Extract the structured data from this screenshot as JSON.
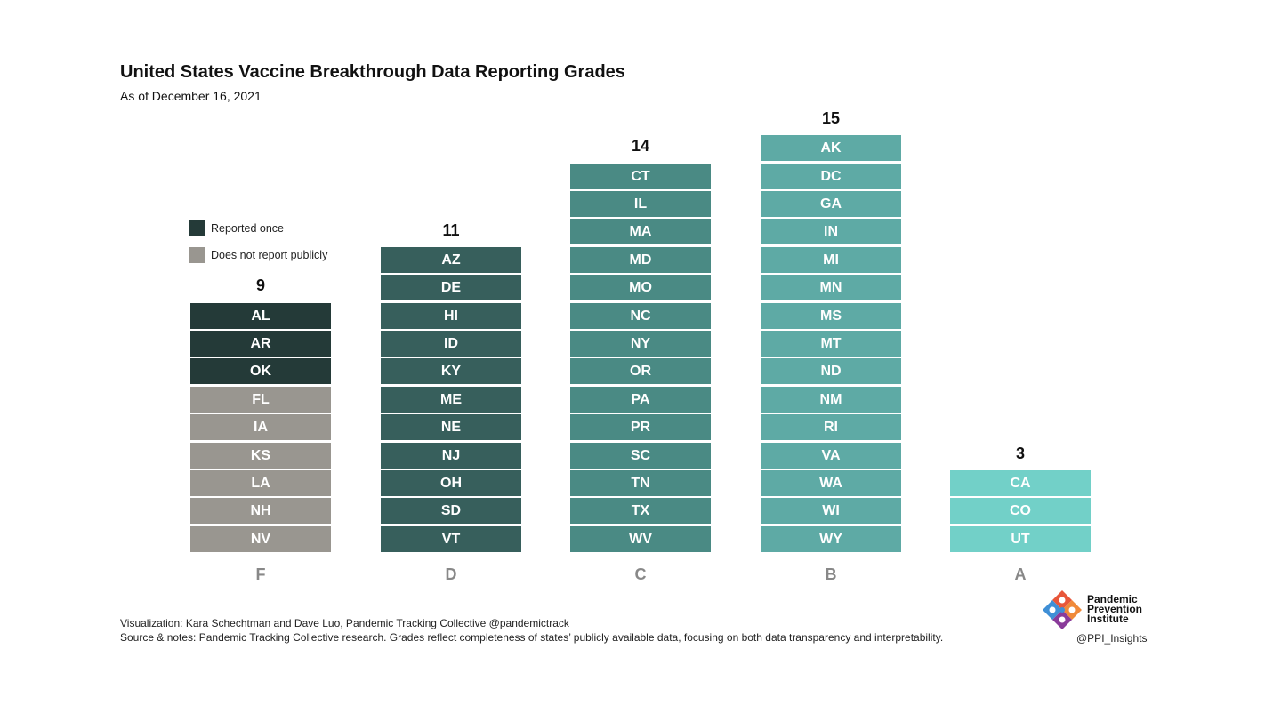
{
  "header": {
    "title": "United States Vaccine Breakthrough Data Reporting Grades",
    "subtitle": "As of December 16, 2021"
  },
  "legend": [
    {
      "label": "Reported once",
      "color": "#243a38"
    },
    {
      "label": "Does not report publicly",
      "color": "#999690"
    }
  ],
  "chart_data": {
    "type": "bar",
    "title": "United States Vaccine Breakthrough Data Reporting Grades",
    "subtitle": "As of December 16, 2021",
    "categories": [
      "F",
      "D",
      "C",
      "B",
      "A"
    ],
    "values": [
      9,
      11,
      14,
      15,
      3
    ],
    "columns": [
      {
        "grade": "F",
        "count": 9,
        "color": "#999690",
        "states": [
          {
            "code": "AL",
            "status": "Reported once"
          },
          {
            "code": "AR",
            "status": "Reported once"
          },
          {
            "code": "OK",
            "status": "Reported once"
          },
          {
            "code": "FL",
            "status": "Does not report publicly"
          },
          {
            "code": "IA",
            "status": "Does not report publicly"
          },
          {
            "code": "KS",
            "status": "Does not report publicly"
          },
          {
            "code": "LA",
            "status": "Does not report publicly"
          },
          {
            "code": "NH",
            "status": "Does not report publicly"
          },
          {
            "code": "NV",
            "status": "Does not report publicly"
          }
        ]
      },
      {
        "grade": "D",
        "count": 11,
        "color": "#375f5c",
        "states": [
          {
            "code": "AZ"
          },
          {
            "code": "DE"
          },
          {
            "code": "HI"
          },
          {
            "code": "ID"
          },
          {
            "code": "KY"
          },
          {
            "code": "ME"
          },
          {
            "code": "NE"
          },
          {
            "code": "NJ"
          },
          {
            "code": "OH"
          },
          {
            "code": "SD"
          },
          {
            "code": "VT"
          }
        ]
      },
      {
        "grade": "C",
        "count": 14,
        "color": "#4a8a84",
        "states": [
          {
            "code": "CT"
          },
          {
            "code": "IL"
          },
          {
            "code": "MA"
          },
          {
            "code": "MD"
          },
          {
            "code": "MO"
          },
          {
            "code": "NC"
          },
          {
            "code": "NY"
          },
          {
            "code": "OR"
          },
          {
            "code": "PA"
          },
          {
            "code": "PR"
          },
          {
            "code": "SC"
          },
          {
            "code": "TN"
          },
          {
            "code": "TX"
          },
          {
            "code": "WV"
          }
        ]
      },
      {
        "grade": "B",
        "count": 15,
        "color": "#5eaaa5",
        "states": [
          {
            "code": "AK"
          },
          {
            "code": "DC"
          },
          {
            "code": "GA"
          },
          {
            "code": "IN"
          },
          {
            "code": "MI"
          },
          {
            "code": "MN"
          },
          {
            "code": "MS"
          },
          {
            "code": "MT"
          },
          {
            "code": "ND"
          },
          {
            "code": "NM"
          },
          {
            "code": "RI"
          },
          {
            "code": "VA"
          },
          {
            "code": "WA"
          },
          {
            "code": "WI"
          },
          {
            "code": "WY"
          }
        ]
      },
      {
        "grade": "A",
        "count": 3,
        "color": "#72d0c8",
        "states": [
          {
            "code": "CA"
          },
          {
            "code": "CO"
          },
          {
            "code": "UT"
          }
        ]
      }
    ],
    "legend_placement": "left, above F column",
    "grid": false
  },
  "footer": {
    "line1": "Visualization: Kara Schechtman and Dave Luo, Pandemic Tracking Collective @pandemictrack",
    "line2": "Source & notes: Pandemic Tracking Collective research. Grades reflect completeness of states’ publicly available data, focusing on both data transparency and interpretability."
  },
  "logo": {
    "line1": "Pandemic",
    "line2": "Prevention",
    "line3": "Institute",
    "handle": "@PPI_Insights",
    "icon": "ppi-diamond-logo-icon"
  }
}
